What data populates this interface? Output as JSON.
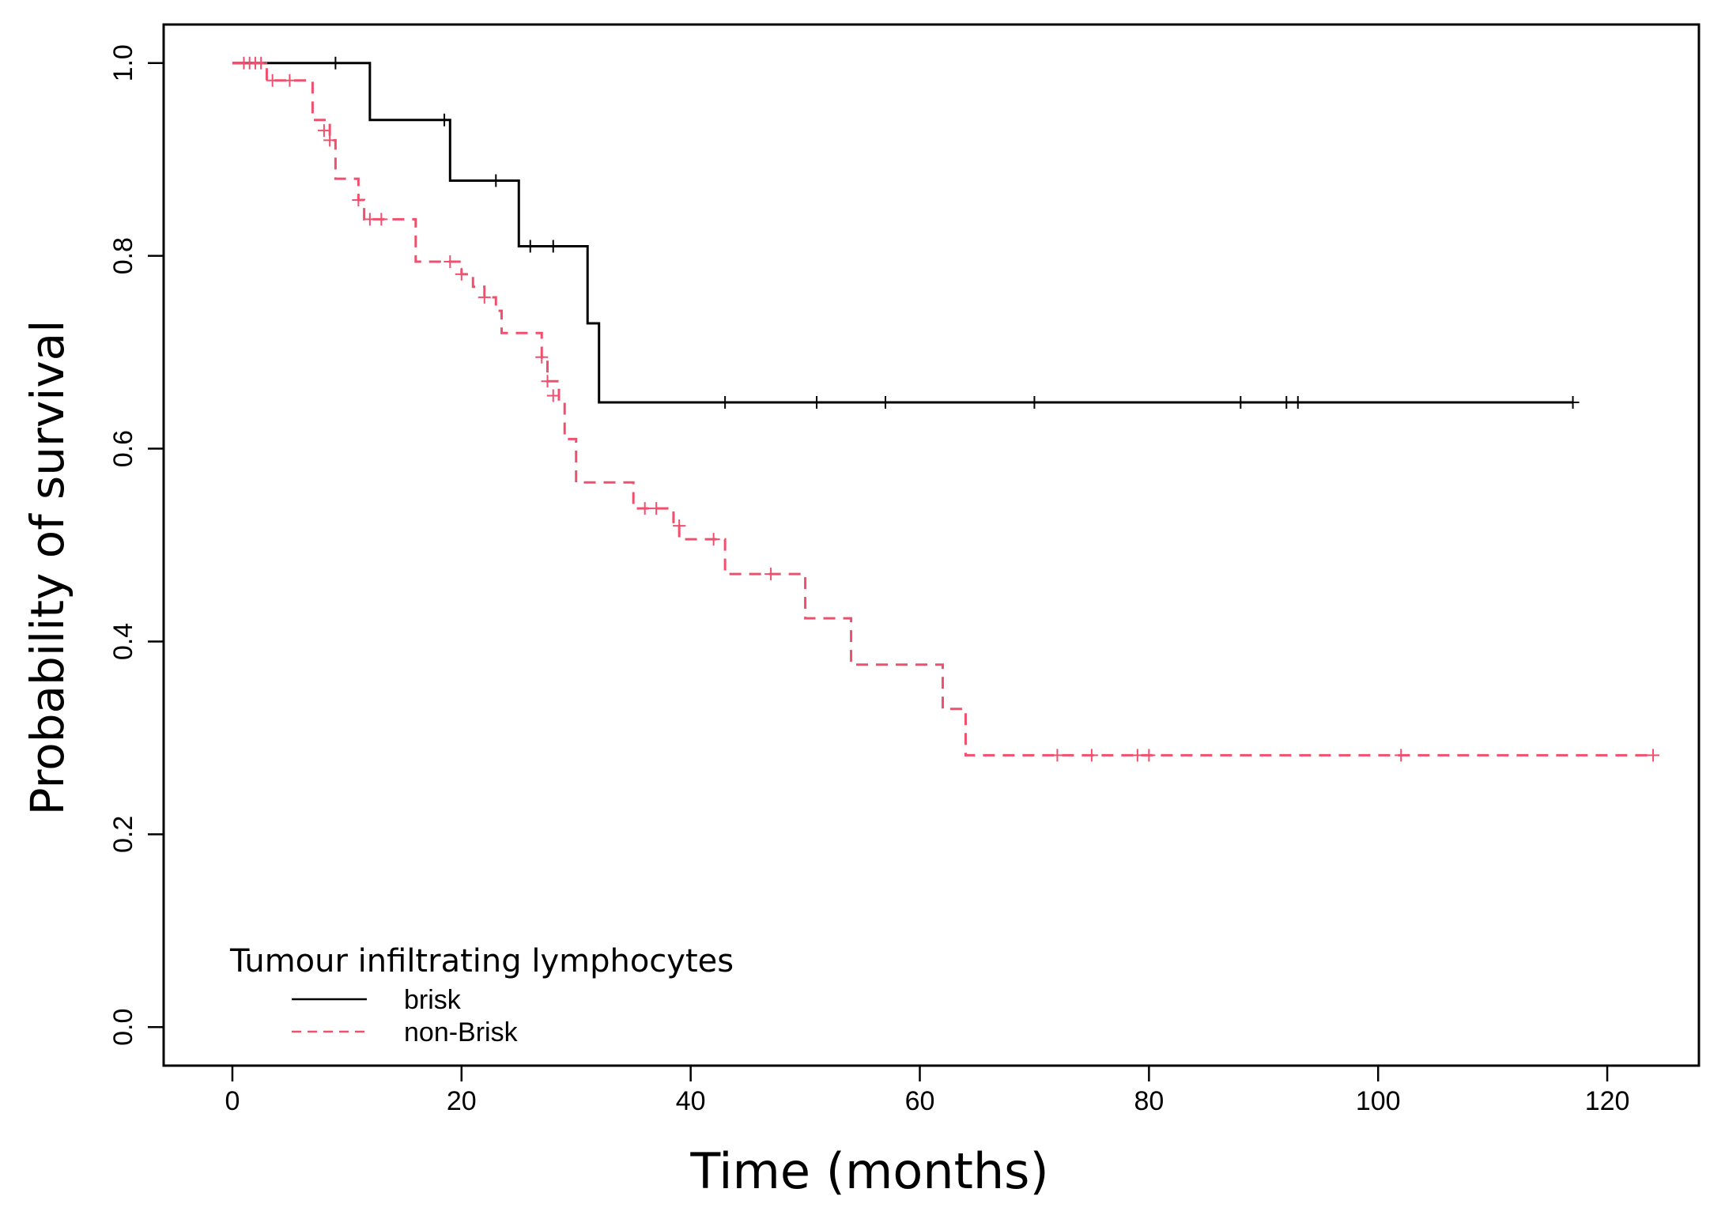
{
  "chart_data": {
    "type": "line",
    "subtype": "kaplan-meier step",
    "xlabel": "Time (months)",
    "ylabel": "Probability of survival",
    "xlim": [
      -6,
      128
    ],
    "ylim": [
      -0.04,
      1.04
    ],
    "xticks": [
      0,
      20,
      40,
      60,
      80,
      100,
      120
    ],
    "xtick_labels": [
      "0",
      "20",
      "40",
      "60",
      "80",
      "100",
      "120"
    ],
    "yticks": [
      0.0,
      0.2,
      0.4,
      0.6,
      0.8,
      1.0
    ],
    "ytick_labels": [
      "0.0",
      "0.2",
      "0.4",
      "0.6",
      "0.8",
      "1.0"
    ],
    "grid": false,
    "legend": {
      "title": "Tumour infiltrating lymphocytes",
      "placement": "bottom-left"
    },
    "series": [
      {
        "name": "brisk",
        "color": "#000000",
        "style": "solid",
        "steps": [
          [
            0,
            1.0
          ],
          [
            12,
            0.941
          ],
          [
            19,
            0.878
          ],
          [
            25,
            0.81
          ],
          [
            31,
            0.73
          ],
          [
            32,
            0.648
          ]
        ],
        "end": 117,
        "censored": [
          [
            9,
            1.0
          ],
          [
            18.5,
            0.941
          ],
          [
            23,
            0.878
          ],
          [
            26,
            0.81
          ],
          [
            28,
            0.81
          ],
          [
            43,
            0.648
          ],
          [
            51,
            0.648
          ],
          [
            57,
            0.648
          ],
          [
            70,
            0.648
          ],
          [
            88,
            0.648
          ],
          [
            92,
            0.648
          ],
          [
            93,
            0.648
          ],
          [
            117,
            0.648
          ]
        ]
      },
      {
        "name": "non-Brisk",
        "color": "#f0506e",
        "style": "dashed",
        "steps": [
          [
            0,
            1.0
          ],
          [
            3,
            0.982
          ],
          [
            7,
            0.941
          ],
          [
            8.5,
            0.92
          ],
          [
            9,
            0.88
          ],
          [
            11,
            0.858
          ],
          [
            11.5,
            0.838
          ],
          [
            16,
            0.794
          ],
          [
            20,
            0.781
          ],
          [
            21,
            0.768
          ],
          [
            22,
            0.757
          ],
          [
            23,
            0.743
          ],
          [
            23.5,
            0.72
          ],
          [
            27,
            0.695
          ],
          [
            27.5,
            0.67
          ],
          [
            28.5,
            0.648
          ],
          [
            29,
            0.61
          ],
          [
            30,
            0.565
          ],
          [
            35,
            0.538
          ],
          [
            38.5,
            0.52
          ],
          [
            39,
            0.506
          ],
          [
            43,
            0.47
          ],
          [
            50,
            0.424
          ],
          [
            54,
            0.376
          ],
          [
            62,
            0.33
          ],
          [
            64,
            0.282
          ]
        ],
        "end": 124,
        "censored": [
          [
            1,
            1.0
          ],
          [
            1.5,
            1.0
          ],
          [
            2,
            1.0
          ],
          [
            2.5,
            1.0
          ],
          [
            3.5,
            0.982
          ],
          [
            5,
            0.982
          ],
          [
            8,
            0.93
          ],
          [
            8.5,
            0.92
          ],
          [
            11,
            0.858
          ],
          [
            12,
            0.838
          ],
          [
            13,
            0.838
          ],
          [
            19,
            0.794
          ],
          [
            20,
            0.781
          ],
          [
            22,
            0.757
          ],
          [
            27,
            0.695
          ],
          [
            27.5,
            0.67
          ],
          [
            28,
            0.655
          ],
          [
            36,
            0.538
          ],
          [
            37,
            0.538
          ],
          [
            39,
            0.52
          ],
          [
            42,
            0.506
          ],
          [
            47,
            0.47
          ],
          [
            72,
            0.282
          ],
          [
            75,
            0.282
          ],
          [
            79,
            0.282
          ],
          [
            80,
            0.282
          ],
          [
            102,
            0.282
          ],
          [
            124,
            0.282
          ]
        ]
      }
    ]
  }
}
